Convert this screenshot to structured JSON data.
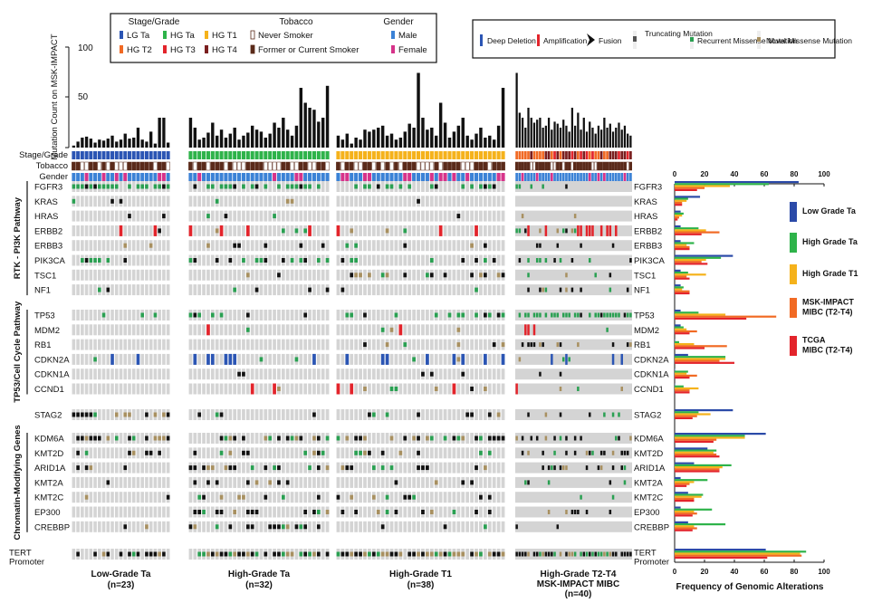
{
  "legend_stage": {
    "title": "Stage/Grade",
    "items": [
      {
        "label": "LG Ta",
        "color": "#2b55b4"
      },
      {
        "label": "HG Ta",
        "color": "#2eb34a"
      },
      {
        "label": "HG T1",
        "color": "#f5b21b"
      },
      {
        "label": "HG T2",
        "color": "#f16a24"
      },
      {
        "label": "HG T3",
        "color": "#e3242b"
      },
      {
        "label": "HG T4",
        "color": "#7a1f1f"
      }
    ]
  },
  "legend_tobacco": {
    "title": "Tobacco",
    "items": [
      {
        "label": "Never Smoker",
        "color": "#ffffff"
      },
      {
        "label": "Former or Current Smoker",
        "color": "#5a2a1a"
      }
    ]
  },
  "legend_gender": {
    "title": "Gender",
    "items": [
      {
        "label": "Male",
        "color": "#3b82d6"
      },
      {
        "label": "Female",
        "color": "#d6338a"
      }
    ]
  },
  "legend_alterations": {
    "items": [
      {
        "label": "Deep Deletion",
        "color": "#2b55b4"
      },
      {
        "label": "Amplification",
        "color": "#e3242b"
      },
      {
        "label": "Fusion",
        "color": "#111111"
      },
      {
        "label": "Truncating Mutation",
        "color": "#111111"
      },
      {
        "label": "Recurrent Missense Mutation",
        "color": "#2aa052"
      },
      {
        "label": "Novel Missense Mutation",
        "color": "#a89060"
      }
    ]
  },
  "mutation_axis": {
    "label": "Mutation Count on MSK-IMPACT",
    "ticks": [
      "100",
      "50",
      "0"
    ]
  },
  "track_labels": [
    "Stage/Grade",
    "Tobacco",
    "Gender"
  ],
  "pathways": [
    {
      "name": "RTK - PI3K Pathway",
      "genes": [
        "FGFR3",
        "KRAS",
        "HRAS",
        "ERBB2",
        "ERBB3",
        "PIK3CA",
        "TSC1",
        "NF1"
      ]
    },
    {
      "name": "TP53/Cell Cycle Pathway",
      "genes": [
        "TP53",
        "MDM2",
        "RB1",
        "CDKN2A",
        "CDKN1A",
        "CCND1"
      ]
    },
    {
      "name": "",
      "genes": [
        "STAG2"
      ]
    },
    {
      "name": "Chromatin-Modifying Genes",
      "genes": [
        "KDM6A",
        "KMT2D",
        "ARID1A",
        "KMT2A",
        "KMT2C",
        "EP300",
        "CREBBP"
      ]
    },
    {
      "name": "",
      "genes": [
        "TERT Promoter"
      ]
    }
  ],
  "groups": [
    {
      "label": "Low-Grade Ta",
      "n": "(n=23)",
      "count": 23
    },
    {
      "label": "High-Grade Ta",
      "n": "(n=32)",
      "count": 32
    },
    {
      "label": "High-Grade T1",
      "n": "(n=38)",
      "count": 38
    },
    {
      "label": "High-Grade T2-T4 MSK-IMPACT MIBC",
      "n": "(n=40)",
      "count": 40
    }
  ],
  "chart_data": {
    "type": "bar",
    "orientation": "horizontal",
    "xlabel": "Frequency of Genomic Alterations",
    "xlim": [
      0,
      100
    ],
    "xticks": [
      0,
      20,
      40,
      60,
      80,
      100
    ],
    "categories": [
      "FGFR3",
      "KRAS",
      "HRAS",
      "ERBB2",
      "ERBB3",
      "PIK3CA",
      "TSC1",
      "NF1",
      "TP53",
      "MDM2",
      "RB1",
      "CDKN2A",
      "CDKN1A",
      "CCND1",
      "STAG2",
      "KDM6A",
      "KMT2D",
      "ARID1A",
      "KMT2A",
      "KMT2C",
      "EP300",
      "CREBBP",
      "TERT Promoter"
    ],
    "series": [
      {
        "name": "Low Grade Ta",
        "color": "#2b4aa8",
        "values": [
          83,
          17,
          4,
          4,
          4,
          39,
          4,
          4,
          4,
          4,
          0,
          9,
          0,
          0,
          39,
          61,
          22,
          13,
          4,
          9,
          4,
          9,
          61
        ]
      },
      {
        "name": "High Grade Ta",
        "color": "#2eb34a",
        "values": [
          63,
          9,
          6,
          16,
          13,
          31,
          9,
          6,
          16,
          6,
          3,
          34,
          9,
          6,
          16,
          47,
          28,
          38,
          22,
          19,
          25,
          34,
          88
        ]
      },
      {
        "name": "High Grade T1",
        "color": "#f5b21b",
        "values": [
          37,
          8,
          5,
          21,
          8,
          21,
          21,
          5,
          34,
          8,
          13,
          34,
          8,
          16,
          24,
          47,
          26,
          32,
          13,
          18,
          13,
          13,
          84
        ]
      },
      {
        "name": "MSK-IMPACT MIBC (T2-T4)",
        "color": "#f16a24",
        "values": [
          20,
          5,
          3,
          30,
          10,
          18,
          8,
          10,
          68,
          15,
          35,
          30,
          15,
          10,
          15,
          28,
          28,
          30,
          10,
          13,
          15,
          15,
          85
        ]
      },
      {
        "name": "TCGA MIBC (T2-T4)",
        "color": "#e3242b",
        "values": [
          15,
          5,
          2,
          18,
          10,
          22,
          10,
          10,
          48,
          10,
          20,
          40,
          10,
          10,
          12,
          26,
          30,
          30,
          8,
          13,
          12,
          12,
          62
        ]
      }
    ]
  }
}
